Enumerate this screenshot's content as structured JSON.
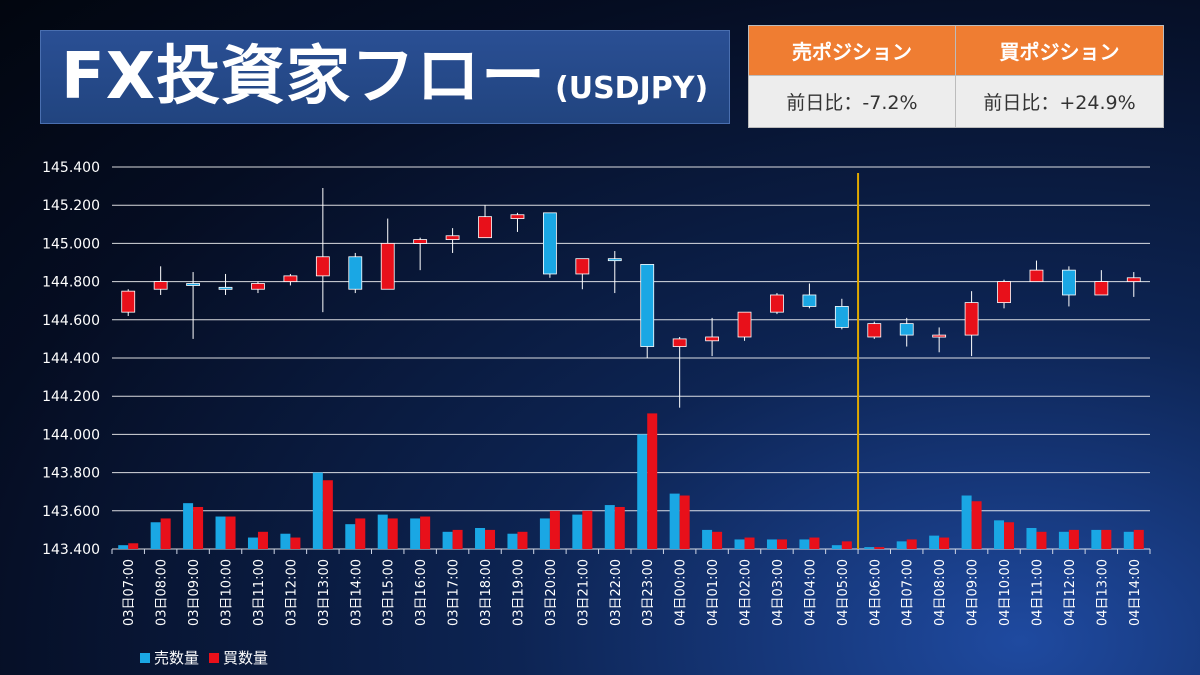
{
  "header": {
    "title": "FX投資家フロー",
    "subtitle": "(USDJPY)"
  },
  "positions": {
    "sell_label": "売ポジション",
    "buy_label": "買ポジション",
    "sell_change": "前日比：-7.2%",
    "buy_change": "前日比：+24.9%",
    "accent": "#ef7d32"
  },
  "legend": {
    "sell_volume": "売数量",
    "buy_volume": "買数量"
  },
  "chart_data": {
    "type": "candlestick",
    "yticks": [
      "145.400",
      "145.200",
      "145.000",
      "144.800",
      "144.600",
      "144.400",
      "144.200",
      "144.000",
      "143.800",
      "143.600",
      "143.400"
    ],
    "ylim": [
      143.4,
      145.4
    ],
    "grid": true,
    "categories": [
      "03日07:00",
      "03日08:00",
      "03日09:00",
      "03日10:00",
      "03日11:00",
      "03日12:00",
      "03日13:00",
      "03日14:00",
      "03日15:00",
      "03日16:00",
      "03日17:00",
      "03日18:00",
      "03日19:00",
      "03日20:00",
      "03日21:00",
      "03日22:00",
      "03日23:00",
      "04日00:00",
      "04日01:00",
      "04日02:00",
      "04日03:00",
      "04日04:00",
      "04日05:00",
      "04日06:00",
      "04日07:00",
      "04日08:00",
      "04日09:00",
      "04日10:00",
      "04日11:00",
      "04日12:00",
      "04日13:00",
      "04日14:00"
    ],
    "divider_after_index": 22,
    "candles": [
      {
        "o": 144.64,
        "c": 144.75,
        "h": 144.76,
        "l": 144.62
      },
      {
        "o": 144.76,
        "c": 144.8,
        "h": 144.88,
        "l": 144.73
      },
      {
        "o": 144.79,
        "c": 144.78,
        "h": 144.85,
        "l": 144.5
      },
      {
        "o": 144.77,
        "c": 144.76,
        "h": 144.84,
        "l": 144.73
      },
      {
        "o": 144.76,
        "c": 144.79,
        "h": 144.8,
        "l": 144.74
      },
      {
        "o": 144.8,
        "c": 144.83,
        "h": 144.84,
        "l": 144.78
      },
      {
        "o": 144.83,
        "c": 144.93,
        "h": 145.29,
        "l": 144.64
      },
      {
        "o": 144.93,
        "c": 144.76,
        "h": 144.95,
        "l": 144.74
      },
      {
        "o": 144.76,
        "c": 145.0,
        "h": 145.13,
        "l": 144.76
      },
      {
        "o": 145.0,
        "c": 145.02,
        "h": 145.03,
        "l": 144.86
      },
      {
        "o": 145.02,
        "c": 145.04,
        "h": 145.08,
        "l": 144.95
      },
      {
        "o": 145.03,
        "c": 145.14,
        "h": 145.2,
        "l": 145.03
      },
      {
        "o": 145.13,
        "c": 145.15,
        "h": 145.16,
        "l": 145.06
      },
      {
        "o": 145.16,
        "c": 144.84,
        "h": 145.16,
        "l": 144.82
      },
      {
        "o": 144.84,
        "c": 144.92,
        "h": 144.92,
        "l": 144.76
      },
      {
        "o": 144.92,
        "c": 144.91,
        "h": 144.96,
        "l": 144.74
      },
      {
        "o": 144.89,
        "c": 144.46,
        "h": 144.89,
        "l": 144.4
      },
      {
        "o": 144.46,
        "c": 144.5,
        "h": 144.51,
        "l": 144.14
      },
      {
        "o": 144.49,
        "c": 144.51,
        "h": 144.61,
        "l": 144.41
      },
      {
        "o": 144.51,
        "c": 144.64,
        "h": 144.64,
        "l": 144.49
      },
      {
        "o": 144.64,
        "c": 144.73,
        "h": 144.74,
        "l": 144.63
      },
      {
        "o": 144.73,
        "c": 144.67,
        "h": 144.79,
        "l": 144.66
      },
      {
        "o": 144.67,
        "c": 144.56,
        "h": 144.71,
        "l": 144.55
      },
      {
        "o": 144.51,
        "c": 144.58,
        "h": 144.59,
        "l": 144.5
      },
      {
        "o": 144.58,
        "c": 144.52,
        "h": 144.61,
        "l": 144.46
      },
      {
        "o": 144.52,
        "c": 144.52,
        "h": 144.56,
        "l": 144.43
      },
      {
        "o": 144.52,
        "c": 144.69,
        "h": 144.75,
        "l": 144.41
      },
      {
        "o": 144.69,
        "c": 144.8,
        "h": 144.81,
        "l": 144.66
      },
      {
        "o": 144.8,
        "c": 144.86,
        "h": 144.91,
        "l": 144.8
      },
      {
        "o": 144.86,
        "c": 144.73,
        "h": 144.88,
        "l": 144.67
      },
      {
        "o": 144.73,
        "c": 144.8,
        "h": 144.86,
        "l": 144.73
      },
      {
        "o": 144.8,
        "c": 144.82,
        "h": 144.85,
        "l": 144.72
      }
    ],
    "series": [
      {
        "name": "売数量",
        "color": "#1aa7e4",
        "values": [
          143.42,
          143.54,
          143.64,
          143.57,
          143.46,
          143.48,
          143.8,
          143.53,
          143.58,
          143.56,
          143.49,
          143.51,
          143.48,
          143.56,
          143.58,
          143.63,
          144.0,
          143.69,
          143.5,
          143.45,
          143.45,
          143.45,
          143.42,
          143.41,
          143.44,
          143.47,
          143.68,
          143.55,
          143.51,
          143.49,
          143.5,
          143.49
        ]
      },
      {
        "name": "買数量",
        "color": "#e8101a",
        "values": [
          143.43,
          143.56,
          143.62,
          143.57,
          143.49,
          143.46,
          143.76,
          143.56,
          143.56,
          143.57,
          143.5,
          143.5,
          143.49,
          143.6,
          143.6,
          143.62,
          144.11,
          143.68,
          143.49,
          143.46,
          143.45,
          143.46,
          143.44,
          143.41,
          143.45,
          143.46,
          143.65,
          143.54,
          143.49,
          143.5,
          143.5,
          143.5
        ]
      }
    ],
    "colors": {
      "up": "#e8101a",
      "down": "#1aa7e4",
      "divider": "#e0a800",
      "grid": "#ffffff",
      "axis_text": "#ffffff"
    }
  }
}
